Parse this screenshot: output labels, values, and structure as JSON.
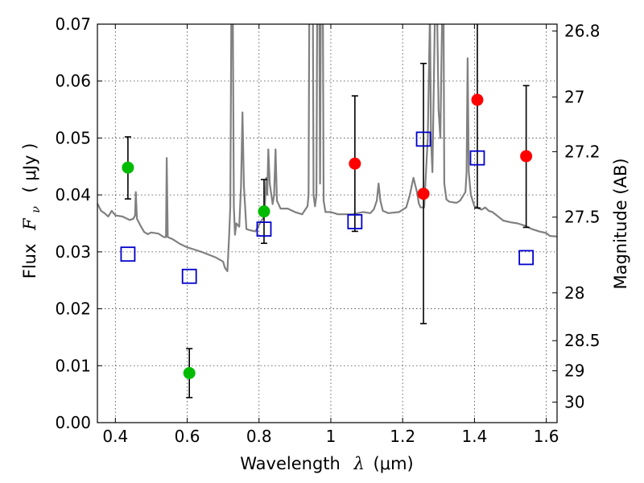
{
  "chart_data": {
    "type": "scatter",
    "xlabel": {
      "prefix": "Wavelength",
      "symbol": "λ",
      "units": "(μm)"
    },
    "ylabel": {
      "prefix": "Flux",
      "symbol": "F",
      "subscript": "ν",
      "units": "( μJy )"
    },
    "y2label": "Magnitude (AB)",
    "xlim": [
      0.35,
      1.63
    ],
    "ylim": [
      0.0,
      0.07
    ],
    "grid": true,
    "xticks": [
      0.4,
      0.6,
      0.8,
      1.0,
      1.2,
      1.4,
      1.6
    ],
    "xtick_labels": [
      "0.4",
      "0.6",
      "0.8",
      "1",
      "1.2",
      "1.4",
      "1.6"
    ],
    "yticks": [
      0.0,
      0.01,
      0.02,
      0.03,
      0.04,
      0.05,
      0.06,
      0.07
    ],
    "ytick_labels": [
      "0.00",
      "0.01",
      "0.02",
      "0.03",
      "0.04",
      "0.05",
      "0.06",
      "0.07"
    ],
    "y2ticks": [
      {
        "label": "26.8",
        "flux": 0.0688
      },
      {
        "label": "27",
        "flux": 0.0572
      },
      {
        "label": "27.2",
        "flux": 0.0476
      },
      {
        "label": "27.5",
        "flux": 0.0361
      },
      {
        "label": "28",
        "flux": 0.0228
      },
      {
        "label": "28.5",
        "flux": 0.0144
      },
      {
        "label": "29",
        "flux": 0.0091
      },
      {
        "label": "30",
        "flux": 0.0036
      }
    ],
    "series": [
      {
        "kind": "line",
        "color": "#808080",
        "points": [
          [
            0.35,
            0.0385
          ],
          [
            0.36,
            0.0372
          ],
          [
            0.37,
            0.0368
          ],
          [
            0.38,
            0.0362
          ],
          [
            0.39,
            0.0372
          ],
          [
            0.4,
            0.0364
          ],
          [
            0.42,
            0.0362
          ],
          [
            0.44,
            0.0356
          ],
          [
            0.45,
            0.0358
          ],
          [
            0.455,
            0.0364
          ],
          [
            0.457,
            0.0405
          ],
          [
            0.46,
            0.0358
          ],
          [
            0.47,
            0.0346
          ],
          [
            0.48,
            0.0335
          ],
          [
            0.49,
            0.0331
          ],
          [
            0.5,
            0.0334
          ],
          [
            0.52,
            0.0332
          ],
          [
            0.535,
            0.0326
          ],
          [
            0.541,
            0.0326
          ],
          [
            0.543,
            0.0465
          ],
          [
            0.546,
            0.0326
          ],
          [
            0.56,
            0.0322
          ],
          [
            0.58,
            0.0314
          ],
          [
            0.6,
            0.0308
          ],
          [
            0.62,
            0.0304
          ],
          [
            0.64,
            0.03
          ],
          [
            0.66,
            0.0295
          ],
          [
            0.68,
            0.029
          ],
          [
            0.7,
            0.0283
          ],
          [
            0.705,
            0.0272
          ],
          [
            0.712,
            0.0266
          ],
          [
            0.717,
            0.033
          ],
          [
            0.72,
            0.038
          ],
          [
            0.723,
            0.072
          ],
          [
            0.727,
            0.072
          ],
          [
            0.73,
            0.038
          ],
          [
            0.733,
            0.033
          ],
          [
            0.737,
            0.035
          ],
          [
            0.745,
            0.0344
          ],
          [
            0.75,
            0.0415
          ],
          [
            0.754,
            0.0545
          ],
          [
            0.758,
            0.0415
          ],
          [
            0.765,
            0.034
          ],
          [
            0.775,
            0.0338
          ],
          [
            0.79,
            0.0336
          ],
          [
            0.805,
            0.0353
          ],
          [
            0.815,
            0.0362
          ],
          [
            0.82,
            0.043
          ],
          [
            0.823,
            0.04
          ],
          [
            0.826,
            0.048
          ],
          [
            0.83,
            0.042
          ],
          [
            0.838,
            0.0384
          ],
          [
            0.842,
            0.04
          ],
          [
            0.846,
            0.048
          ],
          [
            0.85,
            0.039
          ],
          [
            0.86,
            0.0376
          ],
          [
            0.88,
            0.0376
          ],
          [
            0.9,
            0.037
          ],
          [
            0.92,
            0.0366
          ],
          [
            0.935,
            0.038
          ],
          [
            0.938,
            0.04
          ],
          [
            0.94,
            0.072
          ],
          [
            0.95,
            0.072
          ],
          [
            0.952,
            0.04
          ],
          [
            0.956,
            0.038
          ],
          [
            0.96,
            0.04
          ],
          [
            0.962,
            0.072
          ],
          [
            0.968,
            0.072
          ],
          [
            0.97,
            0.042
          ],
          [
            0.972,
            0.072
          ],
          [
            0.978,
            0.072
          ],
          [
            0.98,
            0.039
          ],
          [
            0.985,
            0.037
          ],
          [
            1.0,
            0.037
          ],
          [
            1.02,
            0.0366
          ],
          [
            1.04,
            0.0366
          ],
          [
            1.06,
            0.0366
          ],
          [
            1.09,
            0.037
          ],
          [
            1.11,
            0.0368
          ],
          [
            1.12,
            0.0375
          ],
          [
            1.128,
            0.039
          ],
          [
            1.133,
            0.042
          ],
          [
            1.138,
            0.039
          ],
          [
            1.145,
            0.0372
          ],
          [
            1.16,
            0.0368
          ],
          [
            1.19,
            0.037
          ],
          [
            1.21,
            0.0378
          ],
          [
            1.22,
            0.04
          ],
          [
            1.23,
            0.043
          ],
          [
            1.24,
            0.0405
          ],
          [
            1.245,
            0.0385
          ],
          [
            1.25,
            0.0378
          ],
          [
            1.26,
            0.0378
          ],
          [
            1.27,
            0.05
          ],
          [
            1.276,
            0.072
          ],
          [
            1.279,
            0.05
          ],
          [
            1.283,
            0.044
          ],
          [
            1.29,
            0.072
          ],
          [
            1.296,
            0.072
          ],
          [
            1.3,
            0.055
          ],
          [
            1.305,
            0.05
          ],
          [
            1.31,
            0.072
          ],
          [
            1.314,
            0.072
          ],
          [
            1.316,
            0.042
          ],
          [
            1.322,
            0.0392
          ],
          [
            1.33,
            0.0388
          ],
          [
            1.35,
            0.0386
          ],
          [
            1.36,
            0.039
          ],
          [
            1.37,
            0.04
          ],
          [
            1.375,
            0.0405
          ],
          [
            1.378,
            0.044
          ],
          [
            1.381,
            0.064
          ],
          [
            1.384,
            0.044
          ],
          [
            1.39,
            0.04
          ],
          [
            1.4,
            0.038
          ],
          [
            1.42,
            0.0374
          ],
          [
            1.43,
            0.0378
          ],
          [
            1.44,
            0.0372
          ],
          [
            1.45,
            0.037
          ],
          [
            1.46,
            0.0365
          ],
          [
            1.48,
            0.0355
          ],
          [
            1.5,
            0.0352
          ],
          [
            1.52,
            0.035
          ],
          [
            1.54,
            0.0346
          ],
          [
            1.56,
            0.034
          ],
          [
            1.58,
            0.0336
          ],
          [
            1.6,
            0.0333
          ],
          [
            1.61,
            0.0328
          ],
          [
            1.63,
            0.0327
          ]
        ]
      },
      {
        "kind": "points",
        "marker": "circle",
        "color": "#00bb00",
        "points": [
          {
            "x": 0.435,
            "y": 0.0448,
            "ylo": 0.0393,
            "yhi": 0.0502
          },
          {
            "x": 0.606,
            "y": 0.0087,
            "ylo": 0.0044,
            "yhi": 0.013
          },
          {
            "x": 0.814,
            "y": 0.0371,
            "ylo": 0.0315,
            "yhi": 0.0427
          }
        ]
      },
      {
        "kind": "points",
        "marker": "circle",
        "color": "#ff0000",
        "points": [
          {
            "x": 1.067,
            "y": 0.0455,
            "ylo": 0.0336,
            "yhi": 0.0574
          },
          {
            "x": 1.258,
            "y": 0.0402,
            "ylo": 0.0174,
            "yhi": 0.0631
          },
          {
            "x": 1.408,
            "y": 0.0567,
            "ylo": 0.0377,
            "yhi": 0.072
          },
          {
            "x": 1.544,
            "y": 0.0468,
            "ylo": 0.0343,
            "yhi": 0.0592
          }
        ]
      },
      {
        "kind": "points",
        "marker": "open-square",
        "color": "#0000cc",
        "points": [
          {
            "x": 0.435,
            "y": 0.0296
          },
          {
            "x": 0.606,
            "y": 0.0257
          },
          {
            "x": 0.814,
            "y": 0.034
          },
          {
            "x": 1.067,
            "y": 0.0353
          },
          {
            "x": 1.258,
            "y": 0.0498
          },
          {
            "x": 1.408,
            "y": 0.0465
          },
          {
            "x": 1.544,
            "y": 0.029
          }
        ]
      }
    ]
  }
}
